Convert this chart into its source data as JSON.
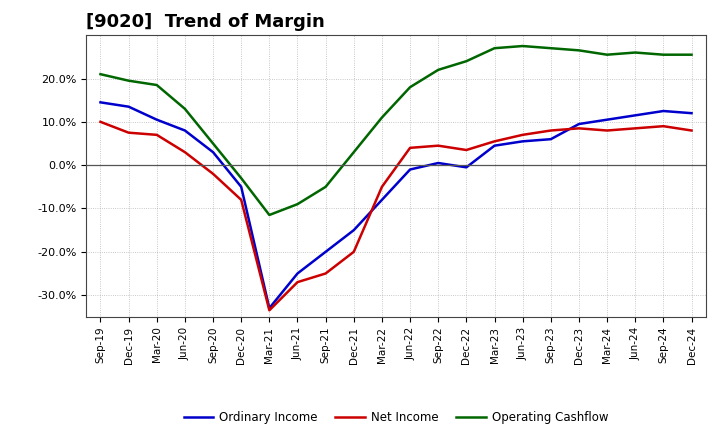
{
  "title": "[9020]  Trend of Margin",
  "x_labels": [
    "Sep-19",
    "Dec-19",
    "Mar-20",
    "Jun-20",
    "Sep-20",
    "Dec-20",
    "Mar-21",
    "Jun-21",
    "Sep-21",
    "Dec-21",
    "Mar-22",
    "Jun-22",
    "Sep-22",
    "Dec-22",
    "Mar-23",
    "Jun-23",
    "Sep-23",
    "Dec-23",
    "Mar-24",
    "Jun-24",
    "Sep-24",
    "Dec-24"
  ],
  "ordinary_income": [
    14.5,
    13.5,
    10.5,
    8.0,
    3.0,
    -5.0,
    -33.0,
    -25.0,
    -20.0,
    -15.0,
    -8.0,
    -1.0,
    0.5,
    -0.5,
    4.5,
    5.5,
    6.0,
    9.5,
    10.5,
    11.5,
    12.5,
    12.0
  ],
  "net_income": [
    10.0,
    7.5,
    7.0,
    3.0,
    -2.0,
    -8.0,
    -33.5,
    -27.0,
    -25.0,
    -20.0,
    -5.0,
    4.0,
    4.5,
    3.5,
    5.5,
    7.0,
    8.0,
    8.5,
    8.0,
    8.5,
    9.0,
    8.0
  ],
  "operating_cashflow": [
    21.0,
    19.5,
    18.5,
    13.0,
    5.0,
    -3.0,
    -11.5,
    -9.0,
    -5.0,
    3.0,
    11.0,
    18.0,
    22.0,
    24.0,
    27.0,
    27.5,
    27.0,
    26.5,
    25.5,
    26.0,
    25.5,
    25.5
  ],
  "ordinary_income_color": "#0000cc",
  "net_income_color": "#cc0000",
  "operating_cashflow_color": "#006600",
  "background_color": "#ffffff",
  "grid_color": "#999999",
  "ylim": [
    -35,
    30
  ],
  "yticks": [
    -30,
    -20,
    -10,
    0,
    10,
    20
  ],
  "title_fontsize": 13,
  "legend_labels": [
    "Ordinary Income",
    "Net Income",
    "Operating Cashflow"
  ]
}
